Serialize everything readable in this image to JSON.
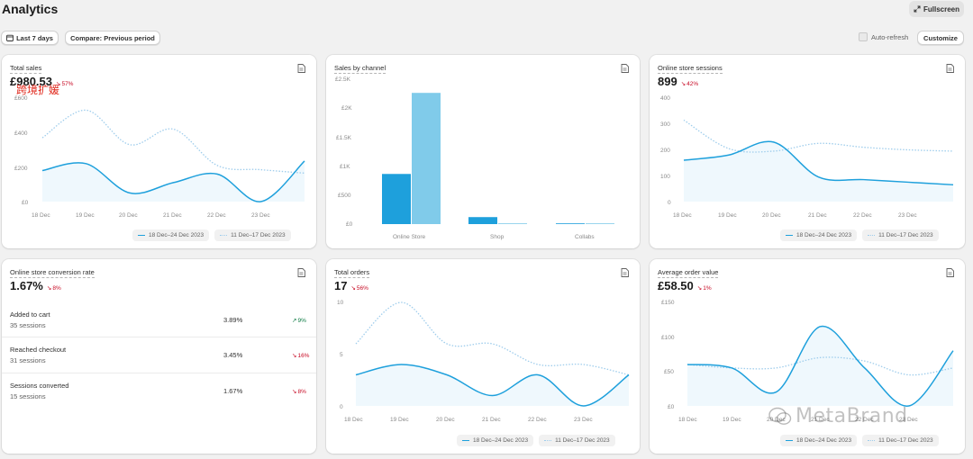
{
  "header": {
    "title": "Analytics",
    "fullscreen_label": "Fullscreen"
  },
  "toolbar": {
    "date_range_label": "Last 7 days",
    "compare_label": "Compare: Previous period",
    "auto_refresh_label": "Auto-refresh",
    "customize_label": "Customize"
  },
  "legend": {
    "current": "18 Dec–24 Dec 2023",
    "previous": "11 Dec–17 Dec 2023"
  },
  "colors": {
    "current_line": "#1ea0dc",
    "previous_line": "#9fcdec",
    "negative_change": "#c70a24",
    "positive_change": "#0c7a43"
  },
  "cards": {
    "total_sales": {
      "title": "Total sales",
      "value": "£980.53",
      "change": "57%",
      "change_direction": "down",
      "y_ticks": [
        "£600",
        "£400",
        "£200",
        "£0"
      ],
      "x_ticks": [
        "18 Dec",
        "19 Dec",
        "20 Dec",
        "21 Dec",
        "22 Dec",
        "23 Dec"
      ]
    },
    "sales_by_channel": {
      "title": "Sales by channel",
      "y_ticks": [
        "£2.5K",
        "£2K",
        "£1.5K",
        "£1K",
        "£500",
        "£0"
      ],
      "categories": [
        "Online Store",
        "Shop",
        "Collabs"
      ]
    },
    "online_store_sessions": {
      "title": "Online store sessions",
      "value": "899",
      "change": "42%",
      "change_direction": "down",
      "y_ticks": [
        "400",
        "300",
        "200",
        "100",
        "0"
      ],
      "x_ticks": [
        "18 Dec",
        "19 Dec",
        "20 Dec",
        "21 Dec",
        "22 Dec",
        "23 Dec"
      ]
    },
    "conversion_rate": {
      "title": "Online store conversion rate",
      "value": "1.67%",
      "change": "8%",
      "change_direction": "down",
      "rows": [
        {
          "label": "Added to cart",
          "sub": "35 sessions",
          "rate": "3.89%",
          "change": "9%",
          "direction": "up"
        },
        {
          "label": "Reached checkout",
          "sub": "31 sessions",
          "rate": "3.45%",
          "change": "16%",
          "direction": "down"
        },
        {
          "label": "Sessions converted",
          "sub": "15 sessions",
          "rate": "1.67%",
          "change": "8%",
          "direction": "down"
        }
      ]
    },
    "total_orders": {
      "title": "Total orders",
      "value": "17",
      "change": "56%",
      "change_direction": "down",
      "y_ticks": [
        "10",
        "5",
        "0"
      ],
      "x_ticks": [
        "18 Dec",
        "19 Dec",
        "20 Dec",
        "21 Dec",
        "22 Dec",
        "23 Dec"
      ]
    },
    "average_order_value": {
      "title": "Average order value",
      "value": "£58.50",
      "change": "1%",
      "change_direction": "down",
      "y_ticks": [
        "£150",
        "£100",
        "£50",
        "£0"
      ],
      "x_ticks": [
        "18 Dec",
        "19 Dec",
        "20 Dec",
        "21 Dec",
        "22 Dec",
        "23 Dec"
      ]
    }
  },
  "chart_data": [
    {
      "type": "line",
      "title": "Total sales",
      "x": [
        "18 Dec",
        "19 Dec",
        "20 Dec",
        "21 Dec",
        "22 Dec",
        "23 Dec",
        "24 Dec"
      ],
      "ylim": [
        0,
        600
      ],
      "series": [
        {
          "name": "18 Dec–24 Dec 2023",
          "values": [
            180,
            220,
            50,
            110,
            160,
            0,
            235
          ]
        },
        {
          "name": "11 Dec–17 Dec 2023",
          "values": [
            370,
            530,
            330,
            420,
            210,
            185,
            165
          ]
        }
      ]
    },
    {
      "type": "bar",
      "title": "Sales by channel",
      "categories": [
        "Online Store",
        "Shop",
        "Collabs"
      ],
      "ylim": [
        0,
        2500
      ],
      "series": [
        {
          "name": "18 Dec–24 Dec 2023",
          "values": [
            860,
            120,
            0
          ]
        },
        {
          "name": "11 Dec–17 Dec 2023",
          "values": [
            2250,
            0,
            0
          ]
        }
      ]
    },
    {
      "type": "line",
      "title": "Online store sessions",
      "x": [
        "18 Dec",
        "19 Dec",
        "20 Dec",
        "21 Dec",
        "22 Dec",
        "23 Dec",
        "24 Dec"
      ],
      "ylim": [
        0,
        400
      ],
      "series": [
        {
          "name": "18 Dec–24 Dec 2023",
          "values": [
            160,
            180,
            230,
            95,
            85,
            75,
            65
          ]
        },
        {
          "name": "11 Dec–17 Dec 2023",
          "values": [
            315,
            205,
            195,
            225,
            210,
            200,
            195
          ]
        }
      ]
    },
    {
      "type": "line",
      "title": "Total orders",
      "x": [
        "18 Dec",
        "19 Dec",
        "20 Dec",
        "21 Dec",
        "22 Dec",
        "23 Dec",
        "24 Dec"
      ],
      "ylim": [
        0,
        10
      ],
      "series": [
        {
          "name": "18 Dec–24 Dec 2023",
          "values": [
            3,
            4,
            3,
            1,
            3,
            0,
            3
          ]
        },
        {
          "name": "11 Dec–17 Dec 2023",
          "values": [
            6,
            10,
            6,
            6,
            4,
            4,
            3
          ]
        }
      ]
    },
    {
      "type": "line",
      "title": "Average order value",
      "x": [
        "18 Dec",
        "19 Dec",
        "20 Dec",
        "21 Dec",
        "22 Dec",
        "23 Dec",
        "24 Dec"
      ],
      "ylim": [
        0,
        150
      ],
      "series": [
        {
          "name": "18 Dec–24 Dec 2023",
          "values": [
            60,
            55,
            20,
            115,
            55,
            0,
            80
          ]
        },
        {
          "name": "11 Dec–17 Dec 2023",
          "values": [
            60,
            55,
            55,
            70,
            65,
            45,
            55
          ]
        }
      ]
    }
  ],
  "watermarks": {
    "cn_text": "跨境扩媛",
    "brand_text": "MetaBrand"
  }
}
